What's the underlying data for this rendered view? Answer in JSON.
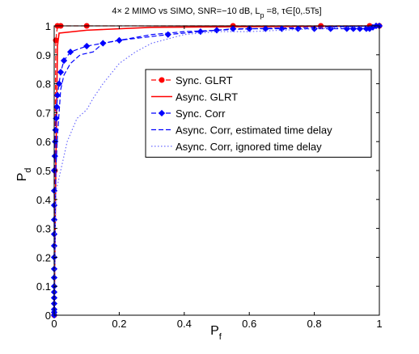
{
  "chart_data": {
    "type": "line",
    "title": {
      "main": "4× 2 MIMO vs SIMO, SNR=−10 dB, L",
      "sub1": "p",
      "mid": " =8,  τ∈[0,.5Ts]"
    },
    "xlabel": {
      "base": "P",
      "sub": "f"
    },
    "ylabel": {
      "base": "P",
      "sub": "d"
    },
    "xlim": [
      0,
      1
    ],
    "ylim": [
      0,
      1
    ],
    "xticks": [
      "0",
      "0.2",
      "0.4",
      "0.6",
      "0.8",
      "1"
    ],
    "yticks": [
      "0",
      "0.1",
      "0.2",
      "0.3",
      "0.4",
      "0.5",
      "0.6",
      "0.7",
      "0.8",
      "0.9",
      "1"
    ],
    "grid": false,
    "legend_position": "center-right",
    "series": [
      {
        "name": "Sync. GLRT",
        "color": "#ff0000",
        "style": "dashed",
        "marker": "circle",
        "x": [
          0,
          0.002,
          0.005,
          0.01,
          0.02,
          0.1,
          0.55,
          0.82,
          0.97,
          1.0
        ],
        "y": [
          0.0,
          0.5,
          0.95,
          1.0,
          1.0,
          1.0,
          1.0,
          1.0,
          1.0,
          1.0
        ]
      },
      {
        "name": "Async. GLRT",
        "color": "#ff0000",
        "style": "solid",
        "marker": "none",
        "x": [
          0,
          0.002,
          0.005,
          0.01,
          0.015,
          0.1,
          0.3,
          1.0
        ],
        "y": [
          0.0,
          0.2,
          0.5,
          0.93,
          0.975,
          0.985,
          0.995,
          1.0
        ]
      },
      {
        "name": "Sync. Corr",
        "color": "#0000ff",
        "style": "dashed",
        "marker": "diamond",
        "x": [
          0,
          0,
          0,
          0,
          0,
          0,
          0,
          0,
          0,
          0,
          0,
          0,
          0,
          0,
          0,
          0,
          0.002,
          0.003,
          0.004,
          0.006,
          0.008,
          0.01,
          0.015,
          0.02,
          0.03,
          0.05,
          0.1,
          0.15,
          0.2,
          0.35,
          0.45,
          0.5,
          0.55,
          0.6,
          0.65,
          0.7,
          0.75,
          0.8,
          0.85,
          0.9,
          0.92,
          0.94,
          0.96,
          0.97,
          0.98,
          0.99,
          1.0
        ],
        "y": [
          0.0,
          0.01,
          0.02,
          0.04,
          0.06,
          0.08,
          0.1,
          0.13,
          0.16,
          0.2,
          0.24,
          0.28,
          0.33,
          0.38,
          0.43,
          0.5,
          0.55,
          0.6,
          0.64,
          0.68,
          0.72,
          0.76,
          0.8,
          0.84,
          0.88,
          0.91,
          0.93,
          0.94,
          0.95,
          0.97,
          0.98,
          0.985,
          0.99,
          0.99,
          0.99,
          0.99,
          0.99,
          0.99,
          0.99,
          0.99,
          0.99,
          0.99,
          0.99,
          0.99,
          0.995,
          1.0,
          1.0
        ]
      },
      {
        "name": "Async. Corr, estimated time delay",
        "color": "#0000ff",
        "style": "dashed",
        "marker": "none",
        "x": [
          0,
          0.005,
          0.01,
          0.015,
          0.02,
          0.03,
          0.05,
          0.08,
          0.12,
          0.15,
          0.2,
          0.3,
          0.4,
          0.6,
          0.8,
          1.0
        ],
        "y": [
          0.0,
          0.5,
          0.62,
          0.7,
          0.78,
          0.83,
          0.87,
          0.9,
          0.91,
          0.94,
          0.95,
          0.97,
          0.98,
          0.99,
          0.995,
          1.0
        ]
      },
      {
        "name": "Async. Corr, ignored time delay",
        "color": "#6a6aff",
        "style": "dotted",
        "marker": "none",
        "x": [
          0,
          0.005,
          0.01,
          0.02,
          0.04,
          0.07,
          0.1,
          0.12,
          0.15,
          0.2,
          0.25,
          0.3,
          0.4,
          0.5,
          0.6,
          0.8,
          1.0
        ],
        "y": [
          0.0,
          0.43,
          0.45,
          0.5,
          0.6,
          0.68,
          0.71,
          0.75,
          0.8,
          0.87,
          0.91,
          0.94,
          0.97,
          0.98,
          0.98,
          0.99,
          1.0
        ]
      }
    ]
  }
}
